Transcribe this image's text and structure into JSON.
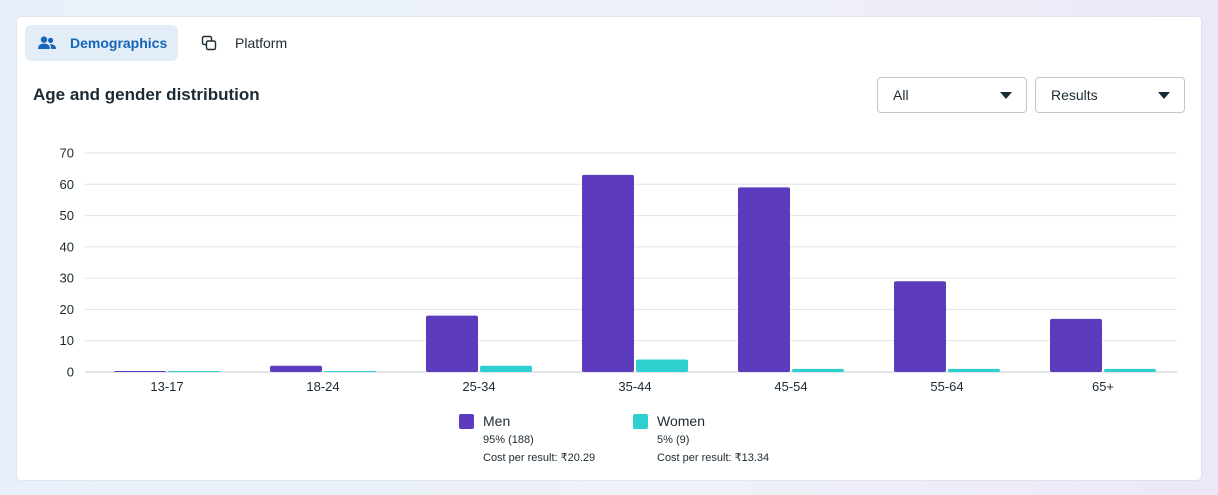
{
  "tabs": [
    {
      "label": "Demographics",
      "icon": "people-icon",
      "active": true
    },
    {
      "label": "Platform",
      "icon": "platform-icon",
      "active": false
    }
  ],
  "section_title": "Age and gender distribution",
  "filters": {
    "audience": {
      "selected": "All"
    },
    "metric": {
      "selected": "Results"
    }
  },
  "colors": {
    "men": "#5c3bbd",
    "women": "#2fcfcf",
    "accent": "#1565b8"
  },
  "legend": [
    {
      "name": "Men",
      "share": "95% (188)",
      "cost": "Cost per result: ₹20.29"
    },
    {
      "name": "Women",
      "share": "5% (9)",
      "cost": "Cost per result: ₹13.34"
    }
  ],
  "chart_data": {
    "type": "bar",
    "title": "",
    "xlabel": "",
    "ylabel": "",
    "categories": [
      "13-17",
      "18-24",
      "25-34",
      "35-44",
      "45-54",
      "55-64",
      "65+"
    ],
    "series": [
      {
        "name": "Men",
        "values": [
          0,
          2,
          18,
          63,
          59,
          29,
          17
        ]
      },
      {
        "name": "Women",
        "values": [
          0,
          0,
          2,
          4,
          1,
          1,
          1
        ]
      }
    ],
    "ylim": [
      0,
      70
    ],
    "yticks": [
      0,
      10,
      20,
      30,
      40,
      50,
      60,
      70
    ],
    "grid": true,
    "legend_position": "bottom"
  }
}
